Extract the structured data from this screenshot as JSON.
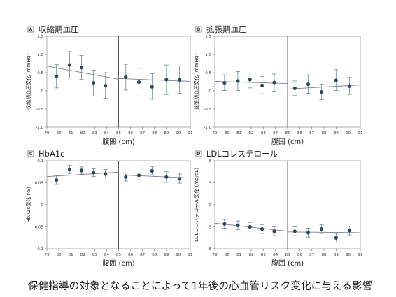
{
  "caption": "保健指導の対象となることによって1年後の心血管リスク変化に与える影響",
  "chart_data": [
    {
      "type": "scatter",
      "panel": "A",
      "title": "収縮期血圧",
      "ylabel": "収縮期血圧変化 (mmHg)",
      "xlabel": "腹囲 (cm)",
      "xlim": [
        79,
        91
      ],
      "ylim": [
        -1.0,
        1.5
      ],
      "yticks": [
        -1.0,
        -0.5,
        0,
        0.5,
        1.0,
        1.5
      ],
      "ytick_labels": [
        "-1.0",
        "-0.5",
        "0",
        "0.5",
        "1.0",
        "1.5"
      ],
      "xticks": [
        79,
        80,
        81,
        82,
        83,
        84,
        85,
        86,
        87,
        88,
        89,
        90,
        91
      ],
      "cutoff": 85,
      "points": [
        {
          "x": 79.8,
          "y": 0.4,
          "lo": 0.08,
          "hi": 0.72
        },
        {
          "x": 80.9,
          "y": 0.71,
          "lo": 0.35,
          "hi": 1.08
        },
        {
          "x": 81.9,
          "y": 0.64,
          "lo": 0.32,
          "hi": 0.97
        },
        {
          "x": 82.9,
          "y": 0.22,
          "lo": -0.14,
          "hi": 0.57
        },
        {
          "x": 83.9,
          "y": 0.14,
          "lo": -0.2,
          "hi": 0.5
        },
        {
          "x": 85.6,
          "y": 0.38,
          "lo": 0.02,
          "hi": 0.73
        },
        {
          "x": 86.7,
          "y": 0.24,
          "lo": -0.14,
          "hi": 0.62
        },
        {
          "x": 87.8,
          "y": 0.11,
          "lo": -0.23,
          "hi": 0.47
        },
        {
          "x": 89.0,
          "y": 0.31,
          "lo": -0.1,
          "hi": 0.71
        },
        {
          "x": 90.1,
          "y": 0.3,
          "lo": -0.07,
          "hi": 0.68
        }
      ],
      "fit_left": [
        [
          79,
          0.68
        ],
        [
          85,
          0.32
        ]
      ],
      "fit_right": [
        [
          85,
          0.34
        ],
        [
          91,
          0.26
        ]
      ]
    },
    {
      "type": "scatter",
      "panel": "B",
      "title": "拡張期血圧",
      "ylabel": "拡張期血圧変化 (mmHg)",
      "xlabel": "腹囲 (cm)",
      "xlim": [
        79,
        91
      ],
      "ylim": [
        -1.0,
        1.5
      ],
      "yticks": [
        -1.0,
        -0.5,
        0,
        0.5,
        1.0,
        1.5
      ],
      "ytick_labels": [
        "-1.0",
        "-0.5",
        "0",
        "0.5",
        "1.0",
        "1.5"
      ],
      "xticks": [
        79,
        80,
        81,
        82,
        83,
        84,
        85,
        86,
        87,
        88,
        89,
        90,
        91
      ],
      "cutoff": 85,
      "points": [
        {
          "x": 79.8,
          "y": 0.22,
          "lo": 0.01,
          "hi": 0.44
        },
        {
          "x": 80.9,
          "y": 0.27,
          "lo": 0.01,
          "hi": 0.53
        },
        {
          "x": 81.9,
          "y": 0.31,
          "lo": 0.08,
          "hi": 0.55
        },
        {
          "x": 82.9,
          "y": 0.15,
          "lo": -0.08,
          "hi": 0.39
        },
        {
          "x": 83.9,
          "y": 0.23,
          "lo": -0.01,
          "hi": 0.46
        },
        {
          "x": 85.6,
          "y": 0.07,
          "lo": -0.13,
          "hi": 0.27
        },
        {
          "x": 86.7,
          "y": 0.18,
          "lo": -0.07,
          "hi": 0.44
        },
        {
          "x": 87.8,
          "y": -0.03,
          "lo": -0.24,
          "hi": 0.18
        },
        {
          "x": 89.0,
          "y": 0.29,
          "lo": 0.01,
          "hi": 0.58
        },
        {
          "x": 90.1,
          "y": 0.13,
          "lo": -0.1,
          "hi": 0.37
        }
      ],
      "fit_left": [
        [
          79,
          0.26
        ],
        [
          85,
          0.2
        ]
      ],
      "fit_right": [
        [
          85,
          0.05
        ],
        [
          91,
          0.16
        ]
      ]
    },
    {
      "type": "scatter",
      "panel": "C",
      "title": "HbA1c",
      "ylabel": "HbA1c変化 (%)",
      "xlabel": "腹囲 (cm)",
      "xlim": [
        79,
        91
      ],
      "ylim": [
        -0.1,
        0.1
      ],
      "yticks": [
        -0.1,
        -0.05,
        0,
        0.05,
        0.1
      ],
      "ytick_labels": [
        "-0.1",
        "-0.05",
        "0",
        "0.05",
        "0.1"
      ],
      "xticks": [
        79,
        80,
        81,
        82,
        83,
        84,
        85,
        86,
        87,
        88,
        89,
        90,
        91
      ],
      "cutoff": 85,
      "points": [
        {
          "x": 79.8,
          "y": 0.056,
          "lo": 0.046,
          "hi": 0.066
        },
        {
          "x": 80.9,
          "y": 0.08,
          "lo": 0.071,
          "hi": 0.09
        },
        {
          "x": 81.9,
          "y": 0.078,
          "lo": 0.07,
          "hi": 0.086
        },
        {
          "x": 82.9,
          "y": 0.073,
          "lo": 0.064,
          "hi": 0.082
        },
        {
          "x": 83.9,
          "y": 0.07,
          "lo": 0.061,
          "hi": 0.08
        },
        {
          "x": 85.6,
          "y": 0.063,
          "lo": 0.054,
          "hi": 0.072
        },
        {
          "x": 86.7,
          "y": 0.067,
          "lo": 0.057,
          "hi": 0.077
        },
        {
          "x": 87.8,
          "y": 0.077,
          "lo": 0.068,
          "hi": 0.087
        },
        {
          "x": 89.0,
          "y": 0.063,
          "lo": 0.051,
          "hi": 0.075
        },
        {
          "x": 90.1,
          "y": 0.059,
          "lo": 0.049,
          "hi": 0.07
        }
      ],
      "fit_left": [
        [
          79,
          0.064
        ],
        [
          85,
          0.074
        ]
      ],
      "fit_right": [
        [
          85,
          0.068
        ],
        [
          91,
          0.061
        ]
      ]
    },
    {
      "type": "scatter",
      "panel": "D",
      "title": "LDLコレステロール",
      "ylabel": "LDLコレステロール変化 (mg/dL)",
      "xlabel": "腹囲 (cm)",
      "xlim": [
        79,
        91
      ],
      "ylim": [
        -6,
        6
      ],
      "yticks": [
        -6,
        -3,
        0,
        3,
        6
      ],
      "ytick_labels": [
        "-6",
        "-3",
        "0",
        "3",
        "6"
      ],
      "xticks": [
        79,
        80,
        81,
        82,
        83,
        84,
        85,
        86,
        87,
        88,
        89,
        90,
        91
      ],
      "cutoff": 85,
      "points": [
        {
          "x": 79.8,
          "y": -2.6,
          "lo": -3.2,
          "hi": -2.0
        },
        {
          "x": 80.9,
          "y": -2.8,
          "lo": -3.4,
          "hi": -2.2
        },
        {
          "x": 81.9,
          "y": -3.0,
          "lo": -3.6,
          "hi": -2.4
        },
        {
          "x": 82.9,
          "y": -3.3,
          "lo": -3.9,
          "hi": -2.7
        },
        {
          "x": 83.9,
          "y": -3.6,
          "lo": -4.2,
          "hi": -3.0
        },
        {
          "x": 85.6,
          "y": -3.6,
          "lo": -4.2,
          "hi": -3.0
        },
        {
          "x": 86.7,
          "y": -3.8,
          "lo": -4.4,
          "hi": -3.2
        },
        {
          "x": 87.8,
          "y": -3.3,
          "lo": -3.9,
          "hi": -2.7
        },
        {
          "x": 89.0,
          "y": -4.5,
          "lo": -5.1,
          "hi": -3.9
        },
        {
          "x": 90.1,
          "y": -3.5,
          "lo": -4.1,
          "hi": -2.9
        }
      ],
      "fit_left": [
        [
          79,
          -2.5
        ],
        [
          85,
          -3.6
        ]
      ],
      "fit_right": [
        [
          85,
          -3.7
        ],
        [
          91,
          -3.8
        ]
      ]
    }
  ]
}
